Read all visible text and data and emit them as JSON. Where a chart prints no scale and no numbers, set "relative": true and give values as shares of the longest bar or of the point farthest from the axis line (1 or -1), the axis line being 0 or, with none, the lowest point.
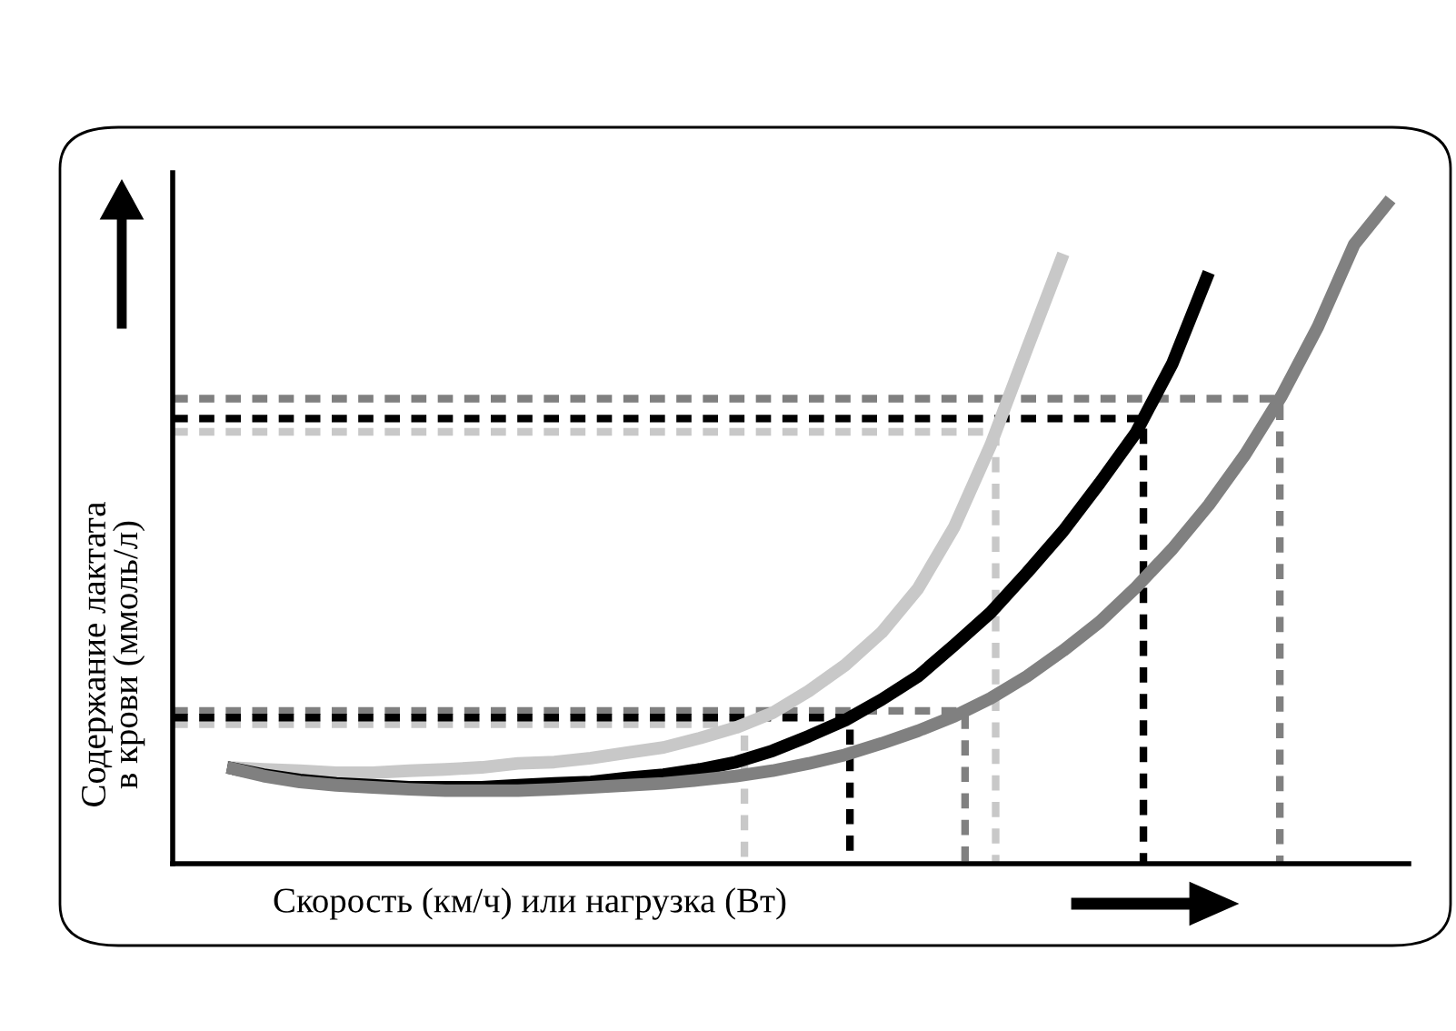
{
  "chart_data": {
    "type": "line",
    "relative": true,
    "xlabel": "Скорость (км/ч) или нагрузка (Вт)",
    "ylabel": "Содержание лактата\nв крови (ммоль/л)",
    "categories": [
      null,
      null,
      null,
      null,
      null,
      null,
      null,
      null,
      null,
      null,
      null,
      null,
      null,
      null,
      null,
      null,
      null,
      null,
      null,
      null,
      null,
      null,
      null,
      null,
      null,
      null,
      null,
      null,
      null,
      null,
      null,
      null,
      null
    ],
    "series": [
      {
        "color": "#c8c8c8",
        "values": [
          0.145,
          0.142,
          0.14,
          0.137,
          0.137,
          0.14,
          0.142,
          0.145,
          0.151,
          0.153,
          0.159,
          0.167,
          0.175,
          0.189,
          0.205,
          0.227,
          0.26,
          0.299,
          0.348,
          0.414,
          0.507,
          0.63,
          0.775,
          0.918,
          null,
          null,
          null,
          null,
          null,
          null,
          null,
          null,
          null
        ]
      },
      {
        "color": "#000000",
        "values": [
          0.145,
          0.134,
          0.126,
          0.121,
          0.118,
          0.115,
          0.115,
          0.115,
          0.118,
          0.121,
          0.123,
          0.129,
          0.134,
          0.142,
          0.153,
          0.17,
          0.192,
          0.216,
          0.247,
          0.282,
          0.329,
          0.378,
          0.438,
          0.501,
          0.573,
          0.649,
          0.753,
          0.89,
          null,
          null,
          null,
          null,
          null
        ]
      },
      {
        "color": "#808080",
        "values": [
          0.145,
          0.132,
          0.123,
          0.118,
          0.115,
          0.112,
          0.11,
          0.11,
          0.11,
          0.112,
          0.115,
          0.118,
          0.121,
          0.126,
          0.132,
          0.14,
          0.151,
          0.164,
          0.181,
          0.2,
          0.222,
          0.249,
          0.282,
          0.321,
          0.364,
          0.416,
          0.474,
          0.54,
          0.616,
          0.704,
          0.808,
          0.932,
          1.0
        ]
      }
    ],
    "ref_lines": [
      {
        "axis": "y",
        "value": 0.65,
        "color": "#c8c8c8",
        "line_style": "dashed"
      },
      {
        "axis": "y",
        "value": 0.7,
        "color": "#808080",
        "line_style": "dashed"
      },
      {
        "axis": "y",
        "value": 0.67,
        "color": "#000000",
        "line_style": "dashed"
      },
      {
        "axis": "y",
        "value": 0.21,
        "color": "#c8c8c8",
        "line_style": "dashed"
      },
      {
        "axis": "y",
        "value": 0.23,
        "color": "#808080",
        "line_style": "dashed"
      },
      {
        "axis": "y",
        "value": 0.22,
        "color": "#000000",
        "line_style": "dashed"
      }
    ],
    "line_style": "solid",
    "marker": "none",
    "legend": false
  }
}
